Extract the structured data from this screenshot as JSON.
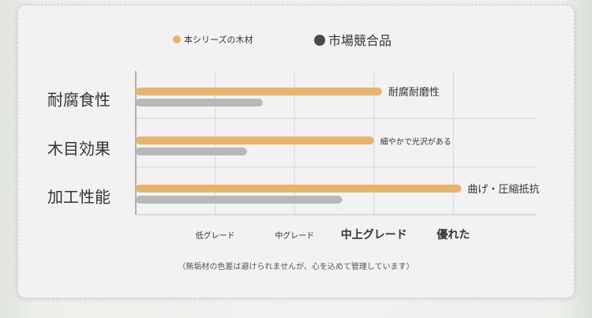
{
  "chart_data": {
    "type": "bar",
    "orientation": "horizontal",
    "categories": [
      "耐腐食性",
      "木目効果",
      "加工性能"
    ],
    "series": [
      {
        "name": "本シリーズの木材",
        "color": "#e8b36a",
        "values": [
          3.1,
          3.0,
          4.1
        ]
      },
      {
        "name": "市場競合品",
        "color": "#b8b8b8",
        "values": [
          1.6,
          1.4,
          2.6
        ]
      }
    ],
    "bar_annotations": [
      "耐腐耐磨性",
      "細やかで光沢がある",
      "曲げ・圧縮抵抗"
    ],
    "x_tick_labels": [
      "低グレード",
      "中グレード",
      "中上グレード",
      "優れた"
    ],
    "x_ticks": [
      1,
      2,
      3,
      4
    ],
    "xlim": [
      0,
      5.05
    ],
    "grid": true,
    "legend_position": "top-center"
  },
  "caption": "（無垢材の色差は避けられませんが、心を込めて管理しています）"
}
